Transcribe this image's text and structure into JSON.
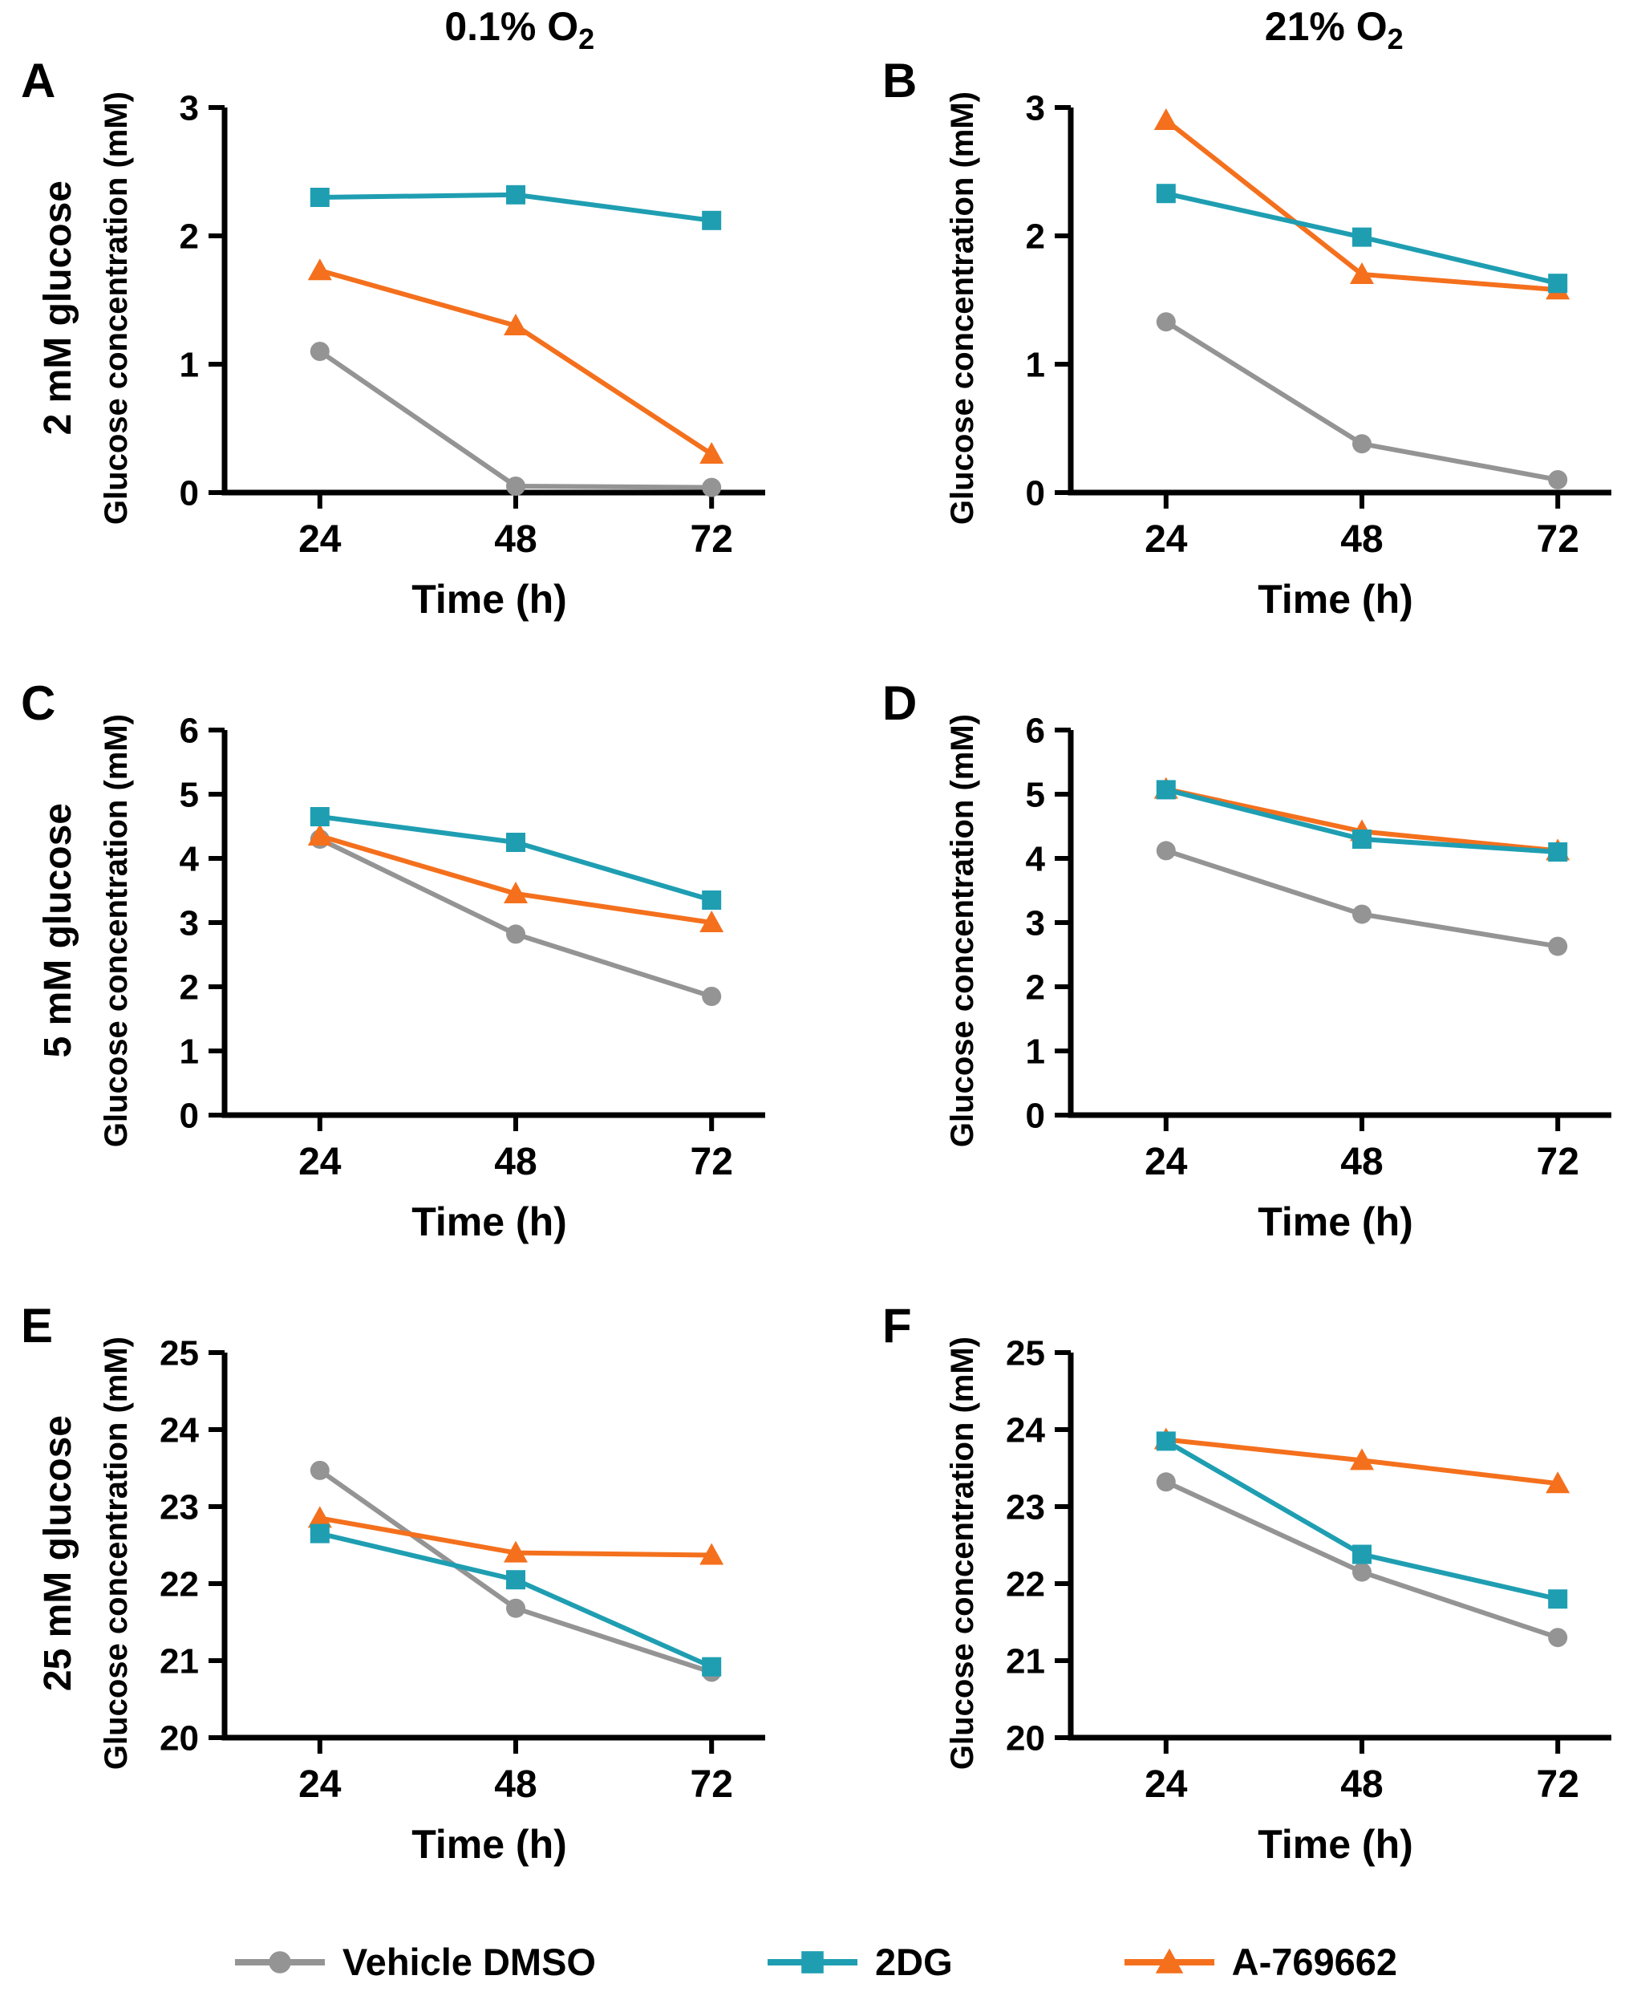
{
  "figure": {
    "column_headers": [
      {
        "text": "0.1% O",
        "sub": "2"
      },
      {
        "text": "21% O",
        "sub": "2"
      }
    ],
    "row_labels": [
      "2 mM glucose",
      "5 mM glucose",
      "25 mM glucose"
    ],
    "colors": {
      "vehicle_gray": "#949494",
      "dg_teal": "#1F9EB2",
      "a769662_orange": "#F4701D",
      "axis_black": "#000000"
    },
    "legend": [
      {
        "label": "Vehicle DMSO",
        "marker": "circle",
        "color": "#949494"
      },
      {
        "label": "2DG",
        "marker": "square",
        "color": "#1F9EB2"
      },
      {
        "label": "A-769662",
        "marker": "triangle",
        "color": "#F4701D"
      }
    ]
  },
  "chart_data": [
    {
      "panel": "A",
      "type": "line",
      "condition": "0.1% O2",
      "glucose_row": "2 mM glucose",
      "x": [
        24,
        48,
        72
      ],
      "xlabel": "Time (h)",
      "ylabel": "Glucose concentration (mM)",
      "ylim": [
        0,
        3
      ],
      "yticks": [
        0,
        1,
        2,
        3
      ],
      "series": [
        {
          "name": "Vehicle DMSO",
          "marker": "circle",
          "color": "#949494",
          "values": [
            1.1,
            0.05,
            0.04
          ]
        },
        {
          "name": "A-769662",
          "marker": "triangle",
          "color": "#F4701D",
          "values": [
            1.73,
            1.3,
            0.3
          ]
        },
        {
          "name": "2DG",
          "marker": "square",
          "color": "#1F9EB2",
          "values": [
            2.3,
            2.32,
            2.12
          ]
        }
      ]
    },
    {
      "panel": "B",
      "type": "line",
      "condition": "21% O2",
      "glucose_row": "2 mM glucose",
      "x": [
        24,
        48,
        72
      ],
      "xlabel": "Time (h)",
      "ylabel": "Glucose concentration (mM)",
      "ylim": [
        0,
        3
      ],
      "yticks": [
        0,
        1,
        2,
        3
      ],
      "series": [
        {
          "name": "Vehicle DMSO",
          "marker": "circle",
          "color": "#949494",
          "values": [
            1.33,
            0.38,
            0.1
          ]
        },
        {
          "name": "A-769662",
          "marker": "triangle",
          "color": "#F4701D",
          "values": [
            2.9,
            1.7,
            1.58
          ]
        },
        {
          "name": "2DG",
          "marker": "square",
          "color": "#1F9EB2",
          "values": [
            2.33,
            1.99,
            1.63
          ]
        }
      ]
    },
    {
      "panel": "C",
      "type": "line",
      "condition": "0.1% O2",
      "glucose_row": "5 mM glucose",
      "x": [
        24,
        48,
        72
      ],
      "xlabel": "Time (h)",
      "ylabel": "Glucose concentration (mM)",
      "ylim": [
        0,
        6
      ],
      "yticks": [
        0,
        1,
        2,
        3,
        4,
        5,
        6
      ],
      "series": [
        {
          "name": "Vehicle DMSO",
          "marker": "circle",
          "color": "#949494",
          "values": [
            4.3,
            2.82,
            1.85
          ]
        },
        {
          "name": "A-769662",
          "marker": "triangle",
          "color": "#F4701D",
          "values": [
            4.35,
            3.45,
            3.0
          ]
        },
        {
          "name": "2DG",
          "marker": "square",
          "color": "#1F9EB2",
          "values": [
            4.65,
            4.25,
            3.35
          ]
        }
      ]
    },
    {
      "panel": "D",
      "type": "line",
      "condition": "21% O2",
      "glucose_row": "5 mM glucose",
      "x": [
        24,
        48,
        72
      ],
      "xlabel": "Time (h)",
      "ylabel": "Glucose concentration (mM)",
      "ylim": [
        0,
        6
      ],
      "yticks": [
        0,
        1,
        2,
        3,
        4,
        5,
        6
      ],
      "series": [
        {
          "name": "Vehicle DMSO",
          "marker": "circle",
          "color": "#949494",
          "values": [
            4.12,
            3.13,
            2.63
          ]
        },
        {
          "name": "A-769662",
          "marker": "triangle",
          "color": "#F4701D",
          "values": [
            5.08,
            4.42,
            4.12
          ]
        },
        {
          "name": "2DG",
          "marker": "square",
          "color": "#1F9EB2",
          "values": [
            5.07,
            4.3,
            4.1
          ]
        }
      ]
    },
    {
      "panel": "E",
      "type": "line",
      "condition": "0.1% O2",
      "glucose_row": "25 mM glucose",
      "x": [
        24,
        48,
        72
      ],
      "xlabel": "Time (h)",
      "ylabel": "Glucose concentration (mM)",
      "ylim": [
        20,
        25
      ],
      "yticks": [
        20,
        21,
        22,
        23,
        24,
        25
      ],
      "series": [
        {
          "name": "Vehicle DMSO",
          "marker": "circle",
          "color": "#949494",
          "values": [
            23.47,
            21.68,
            20.85
          ]
        },
        {
          "name": "A-769662",
          "marker": "triangle",
          "color": "#F4701D",
          "values": [
            22.85,
            22.4,
            22.37
          ]
        },
        {
          "name": "2DG",
          "marker": "square",
          "color": "#1F9EB2",
          "values": [
            22.65,
            22.05,
            20.92
          ]
        }
      ]
    },
    {
      "panel": "F",
      "type": "line",
      "condition": "21% O2",
      "glucose_row": "25 mM glucose",
      "x": [
        24,
        48,
        72
      ],
      "xlabel": "Time (h)",
      "ylabel": "Glucose concentration (mM)",
      "ylim": [
        20,
        25
      ],
      "yticks": [
        20,
        21,
        22,
        23,
        24,
        25
      ],
      "series": [
        {
          "name": "Vehicle DMSO",
          "marker": "circle",
          "color": "#949494",
          "values": [
            23.32,
            22.15,
            21.3
          ]
        },
        {
          "name": "A-769662",
          "marker": "triangle",
          "color": "#F4701D",
          "values": [
            23.87,
            23.6,
            23.3
          ]
        },
        {
          "name": "2DG",
          "marker": "square",
          "color": "#1F9EB2",
          "values": [
            23.85,
            22.38,
            21.8
          ]
        }
      ]
    }
  ]
}
